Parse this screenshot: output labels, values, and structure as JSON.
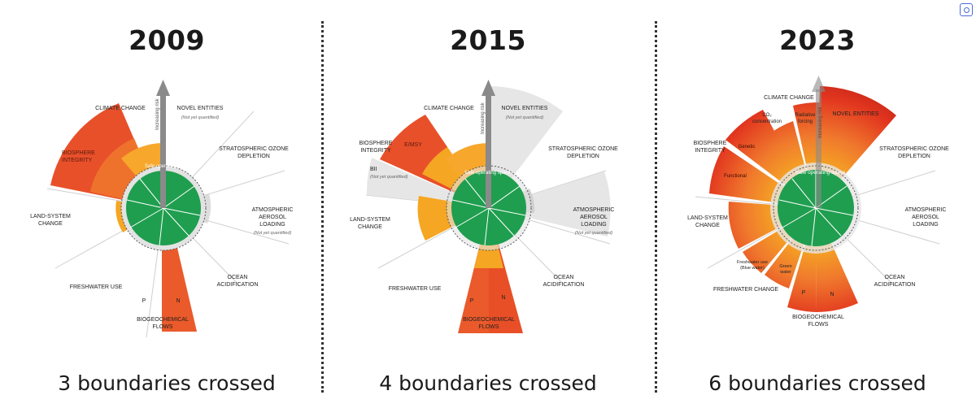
{
  "colors": {
    "safe_green": "#1f9e4f",
    "zone_orange": "#f5a623",
    "zone_red": "#e2361f",
    "not_quantified_grey": "#d9d9d9",
    "divider": "#333333"
  },
  "axis_label": "Increasing risk",
  "safe_space_label": "Safe operating space",
  "panels": [
    {
      "year": "2009",
      "caption": "3 boundaries crossed",
      "labels": {
        "climate_change": "CLIMATE CHANGE",
        "novel_entities": "NOVEL ENTITIES",
        "novel_entities_note": "(Not yet quantified)",
        "ozone": [
          "STRATOSPHERIC OZONE",
          "DEPLETION"
        ],
        "aerosol": [
          "ATMOSPHERIC",
          "AEROSOL",
          "LOADING"
        ],
        "aerosol_note": "(Not yet quantified)",
        "ocean": [
          "OCEAN",
          "ACIDIFICATION"
        ],
        "biogeochemical": [
          "BIOGEOCHEMICAL",
          "FLOWS"
        ],
        "p": "P",
        "n": "N",
        "freshwater": "FRESHWATER USE",
        "land": [
          "LAND-SYSTEM",
          "CHANGE"
        ],
        "biosphere": [
          "BIOSPHERE",
          "INTEGRITY"
        ]
      },
      "boundary_levels": {
        "climate_change": 1.4,
        "novel_entities": 0,
        "stratospheric_ozone": 0.5,
        "atmospheric_aerosol": 0,
        "ocean_acidification": 0.9,
        "nitrogen": 2.7,
        "phosphorus": 0.5,
        "freshwater_use": 0.5,
        "land_system_change": 0.9,
        "biosphere_integrity": 2.9
      }
    },
    {
      "year": "2015",
      "caption": "4 boundaries crossed",
      "labels": {
        "climate_change": "CLIMATE CHANGE",
        "novel_entities": "NOVEL ENTITIES",
        "novel_entities_note": "(Not yet quantified)",
        "ozone": [
          "STRATOSPHERIC OZONE",
          "DEPLETION"
        ],
        "aerosol": [
          "ATMOSPHERIC",
          "AEROSOL",
          "LOADING"
        ],
        "aerosol_note": "(Not yet quantified)",
        "ocean": [
          "OCEAN",
          "ACIDIFICATION"
        ],
        "biogeochemical": [
          "BIOGEOCHEMICAL",
          "FLOWS"
        ],
        "p": "P",
        "n": "N",
        "freshwater": "FRESHWATER USE",
        "land": [
          "LAND-SYSTEM",
          "CHANGE"
        ],
        "biosphere": [
          "BIOSPHERE",
          "INTEGRITY"
        ],
        "emsy": "E/MSY",
        "bii": "BII",
        "bii_note": "(Not yet quantified)"
      },
      "boundary_levels": {
        "climate_change": 1.5,
        "novel_entities": 0,
        "stratospheric_ozone": 0.5,
        "atmospheric_aerosol": 0,
        "ocean_acidification": 0.9,
        "nitrogen": 2.6,
        "phosphorus": 2.4,
        "freshwater_use": 0.5,
        "land_system_change": 1.6,
        "biosphere_integrity_emsy": 2.8,
        "biosphere_integrity_bii": 0
      }
    },
    {
      "year": "2023",
      "caption": "6 boundaries crossed",
      "labels": {
        "climate_change": "CLIMATE CHANGE",
        "co2": [
          "CO₂",
          "concentration"
        ],
        "radiative": [
          "Radiative",
          "forcing"
        ],
        "novel_entities": "NOVEL ENTITIES",
        "ozone": [
          "STRATOSPHERIC OZONE",
          "DEPLETION"
        ],
        "aerosol": [
          "ATMOSPHERIC",
          "AEROSOL",
          "LOADING"
        ],
        "ocean": [
          "OCEAN",
          "ACIDIFICATION"
        ],
        "biogeochemical": [
          "BIOGEOCHEMICAL",
          "FLOWS"
        ],
        "p": "P",
        "n": "N",
        "freshwater": "FRESHWATER CHANGE",
        "blue_water": [
          "Freshwater use",
          "(Blue water)"
        ],
        "green_water": [
          "Green",
          "water"
        ],
        "land": [
          "LAND-SYSTEM",
          "CHANGE"
        ],
        "biosphere": [
          "BIOSPHERE",
          "INTEGRITY"
        ],
        "genetic": "Genetic",
        "functional": "Functional"
      },
      "boundary_levels": {
        "co2_concentration": 1.5,
        "radiative_forcing": 2.0,
        "novel_entities": 3.0,
        "stratospheric_ozone": 0.45,
        "atmospheric_aerosol": 0.5,
        "ocean_acidification": 0.95,
        "nitrogen": 2.0,
        "phosphorus": 1.7,
        "green_water": 1.3,
        "blue_water": 1.2,
        "land_system_change": 1.7,
        "biosphere_functional": 2.3,
        "biosphere_genetic": 2.5
      }
    }
  ]
}
